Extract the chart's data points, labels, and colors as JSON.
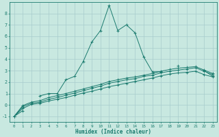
{
  "title": "",
  "xlabel": "Humidex (Indice chaleur)",
  "ylabel": "",
  "bg_color": "#c8e8e0",
  "grid_color": "#a8cccc",
  "line_color": "#1a7a6e",
  "xlim": [
    -0.5,
    23.5
  ],
  "ylim": [
    -1.5,
    9.0
  ],
  "xticks": [
    0,
    1,
    2,
    3,
    4,
    5,
    6,
    7,
    8,
    9,
    10,
    11,
    12,
    13,
    14,
    15,
    16,
    17,
    18,
    19,
    20,
    21,
    22,
    23
  ],
  "yticks": [
    -1,
    0,
    1,
    2,
    3,
    4,
    5,
    6,
    7,
    8
  ],
  "series": [
    {
      "x": [
        0,
        1,
        2,
        3,
        4,
        5,
        6,
        7,
        8,
        9,
        10,
        11,
        12,
        13,
        14,
        15,
        16,
        17,
        18,
        19,
        20,
        21,
        22,
        23
      ],
      "y": [
        -1.0,
        -0.5,
        null,
        0.8,
        1.0,
        1.0,
        2.2,
        2.5,
        3.8,
        5.5,
        6.5,
        8.7,
        6.5,
        7.0,
        6.3,
        4.2,
        2.9,
        2.9,
        null,
        3.4,
        null,
        null,
        3.0,
        2.5
      ]
    },
    {
      "x": [
        0,
        1,
        2,
        3,
        4,
        5,
        6,
        7,
        8,
        9,
        10,
        11,
        12,
        13,
        14,
        15,
        16,
        17,
        18,
        19,
        20,
        21,
        22,
        23
      ],
      "y": [
        -1.0,
        -0.3,
        0.05,
        0.15,
        0.35,
        0.5,
        0.65,
        0.85,
        1.05,
        1.2,
        1.4,
        1.6,
        1.75,
        1.9,
        2.05,
        2.2,
        2.35,
        2.55,
        2.7,
        2.8,
        2.85,
        2.95,
        2.65,
        2.45
      ]
    },
    {
      "x": [
        0,
        1,
        2,
        3,
        4,
        5,
        6,
        7,
        8,
        9,
        10,
        11,
        12,
        13,
        14,
        15,
        16,
        17,
        18,
        19,
        20,
        21,
        22,
        23
      ],
      "y": [
        -1.0,
        -0.15,
        0.15,
        0.25,
        0.5,
        0.65,
        0.85,
        1.05,
        1.25,
        1.45,
        1.65,
        1.9,
        2.05,
        2.2,
        2.3,
        2.5,
        2.6,
        2.8,
        2.95,
        3.05,
        3.15,
        3.25,
        2.95,
        2.65
      ]
    },
    {
      "x": [
        0,
        1,
        2,
        3,
        4,
        5,
        6,
        7,
        8,
        9,
        10,
        11,
        12,
        13,
        14,
        15,
        16,
        17,
        18,
        19,
        20,
        21,
        22,
        23
      ],
      "y": [
        -1.0,
        -0.05,
        0.25,
        0.38,
        0.65,
        0.82,
        1.0,
        1.2,
        1.4,
        1.6,
        1.8,
        2.05,
        2.2,
        2.35,
        2.45,
        2.6,
        2.75,
        2.95,
        3.1,
        3.22,
        3.28,
        3.35,
        3.05,
        2.75
      ]
    }
  ]
}
